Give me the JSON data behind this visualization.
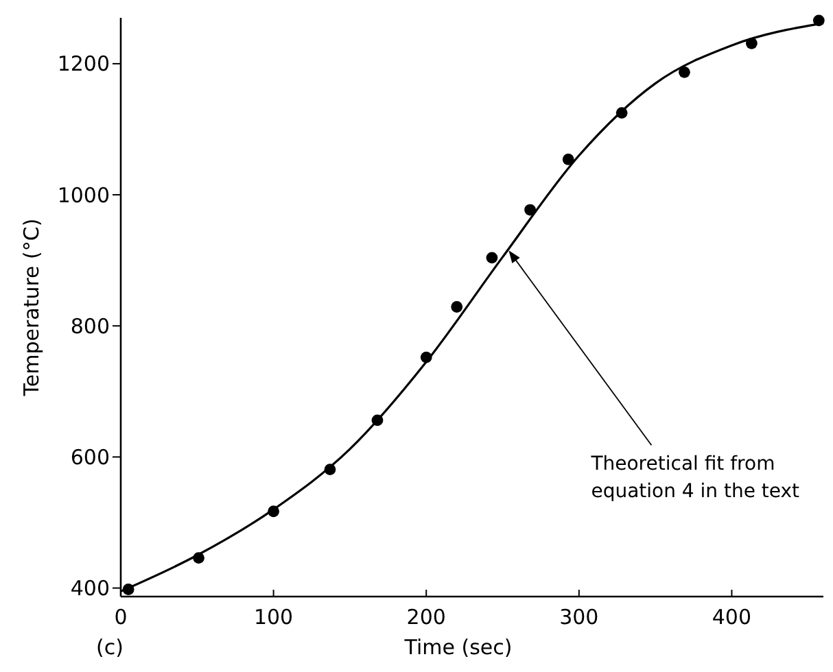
{
  "chart_data": {
    "type": "scatter",
    "xlabel": "Time (sec)",
    "ylabel": "Temperature (°C)",
    "xlim": [
      0,
      460
    ],
    "ylim": [
      387,
      1270
    ],
    "xticks": [
      0,
      100,
      200,
      300,
      400
    ],
    "yticks": [
      400,
      600,
      800,
      1000,
      1200
    ],
    "grid": false,
    "series": [
      {
        "color": "#000000",
        "marker": "circle",
        "x": [
          5,
          51,
          100,
          137,
          168,
          200,
          220,
          243,
          268,
          293,
          328,
          369,
          413,
          457
        ],
        "values": [
          398,
          446,
          517,
          581,
          656,
          752,
          829,
          904,
          977,
          1054,
          1125,
          1187,
          1231,
          1266
        ]
      },
      {
        "type": "line",
        "color": "#000000",
        "marker": "none",
        "line_style": "solid",
        "x": [
          0,
          50,
          100,
          150,
          200,
          250,
          300,
          350,
          400,
          460
        ],
        "values": [
          395,
          450,
          520,
          612,
          745,
          905,
          1060,
          1170,
          1228,
          1262
        ]
      }
    ],
    "annotations": [
      {
        "text": "Theoretical fit from\nequation 4 in the text",
        "x": 254,
        "y": 915
      },
      "(c)"
    ]
  }
}
